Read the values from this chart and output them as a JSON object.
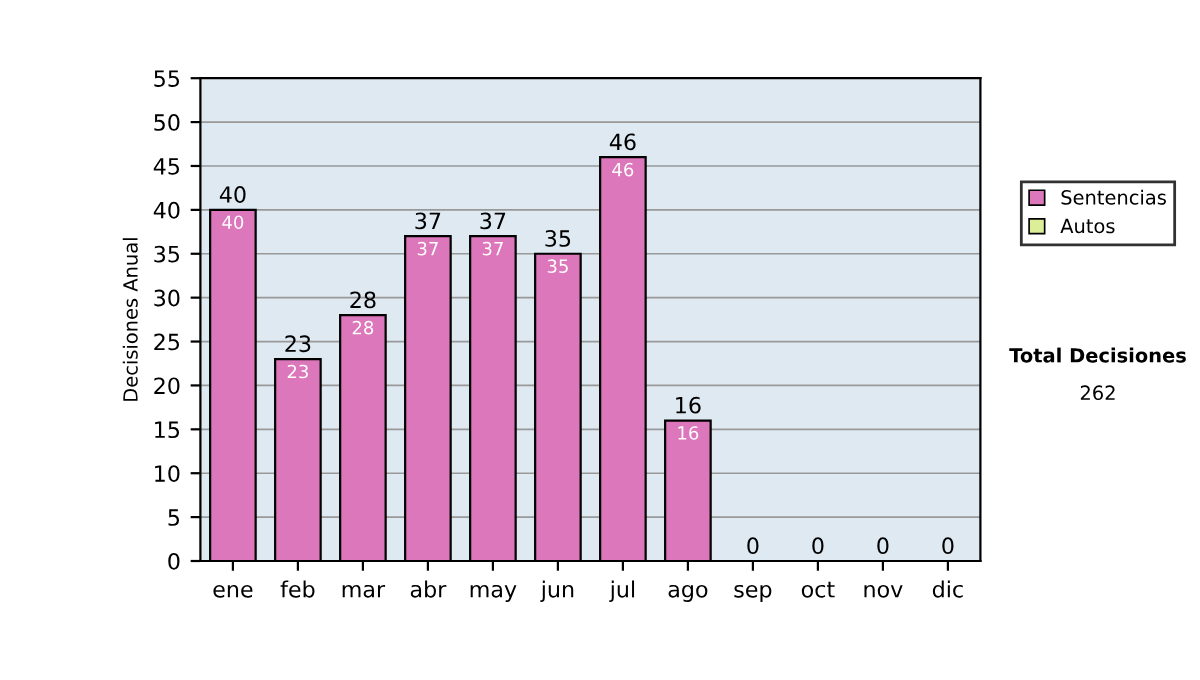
{
  "chart_data": {
    "type": "bar",
    "ylabel": "Decisiones Anual",
    "categories": [
      "ene",
      "feb",
      "mar",
      "abr",
      "may",
      "jun",
      "jul",
      "ago",
      "sep",
      "oct",
      "nov",
      "dic"
    ],
    "series": [
      {
        "name": "Sentencias",
        "color": "#dd77bb",
        "values": [
          40,
          23,
          28,
          37,
          37,
          35,
          46,
          16,
          0,
          0,
          0,
          0
        ],
        "value_labels": [
          "40",
          "23",
          "28",
          "37",
          "37",
          "35",
          "46",
          "16",
          null,
          null,
          null,
          null
        ]
      },
      {
        "name": "Autos",
        "color": "#ddee99",
        "values": [
          null,
          null,
          null,
          null,
          null,
          null,
          null,
          null,
          null,
          null,
          null,
          null
        ]
      }
    ],
    "stacked": true,
    "totals": [
      "40",
      "23",
      "28",
      "37",
      "37",
      "35",
      "46",
      "16",
      "0",
      "0",
      "0",
      "0"
    ],
    "ylim": [
      0,
      55
    ],
    "yticks": [
      0,
      5,
      10,
      15,
      20,
      25,
      30,
      35,
      40,
      45,
      50,
      55
    ],
    "grid": "y",
    "legend": "right",
    "annotations": [
      "Total Decisiones",
      "262"
    ]
  }
}
